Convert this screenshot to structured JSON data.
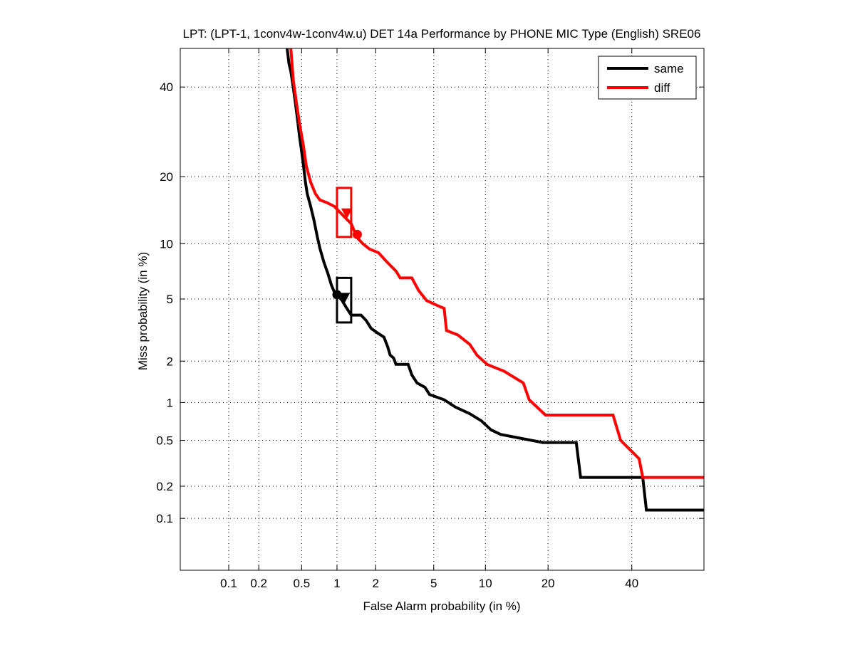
{
  "chart_data": {
    "type": "line",
    "title": "LPT: (LPT-1, 1conv4w-1conv4w.u) DET 14a Performance by PHONE MIC Type (English) SRE06",
    "xlabel": "False Alarm probability (in %)",
    "ylabel": "Miss probability (in %)",
    "xscale": "normal-deviate (probit)",
    "yscale": "normal-deviate (probit)",
    "xlim": [
      0.03,
      60
    ],
    "ylim": [
      0.03,
      50
    ],
    "x_ticks": [
      "0.1",
      "0.2",
      "0.5",
      "1",
      "2",
      "5",
      "10",
      "20",
      "40"
    ],
    "y_ticks": [
      "0.1",
      "0.2",
      "0.5",
      "1",
      "2",
      "5",
      "10",
      "20",
      "40"
    ],
    "grid": true,
    "legend_position": "top-right",
    "series": [
      {
        "name": "same",
        "color": "#000000",
        "points": [
          [
            0.37,
            50
          ],
          [
            0.385,
            46
          ],
          [
            0.4,
            44
          ],
          [
            0.42,
            40
          ],
          [
            0.44,
            36
          ],
          [
            0.46,
            32
          ],
          [
            0.48,
            28
          ],
          [
            0.5,
            25
          ],
          [
            0.52,
            22
          ],
          [
            0.54,
            19
          ],
          [
            0.56,
            17
          ],
          [
            0.6,
            15
          ],
          [
            0.64,
            13
          ],
          [
            0.68,
            11
          ],
          [
            0.72,
            9.5
          ],
          [
            0.78,
            8
          ],
          [
            0.84,
            7
          ],
          [
            0.9,
            6
          ],
          [
            0.95,
            5.5
          ],
          [
            1.0,
            5.3
          ],
          [
            1.1,
            4.9
          ],
          [
            1.2,
            4.4
          ],
          [
            1.3,
            4.0
          ],
          [
            1.55,
            4.0
          ],
          [
            1.7,
            3.7
          ],
          [
            1.85,
            3.3
          ],
          [
            2.05,
            3.1
          ],
          [
            2.3,
            2.9
          ],
          [
            2.45,
            2.5
          ],
          [
            2.55,
            2.2
          ],
          [
            2.7,
            2.1
          ],
          [
            2.8,
            1.9
          ],
          [
            3.4,
            1.9
          ],
          [
            3.6,
            1.6
          ],
          [
            3.9,
            1.4
          ],
          [
            4.4,
            1.3
          ],
          [
            4.7,
            1.15
          ],
          [
            5.8,
            1.05
          ],
          [
            6.8,
            0.92
          ],
          [
            8.2,
            0.82
          ],
          [
            9.5,
            0.72
          ],
          [
            10.7,
            0.61
          ],
          [
            12,
            0.56
          ],
          [
            19,
            0.48
          ],
          [
            26,
            0.48
          ],
          [
            27,
            0.24
          ],
          [
            43,
            0.24
          ],
          [
            44,
            0.12
          ],
          [
            60,
            0.12
          ]
        ]
      },
      {
        "name": "diff",
        "color": "#ff0000",
        "points": [
          [
            0.4,
            50
          ],
          [
            0.42,
            42
          ],
          [
            0.45,
            36
          ],
          [
            0.48,
            31
          ],
          [
            0.52,
            26
          ],
          [
            0.55,
            22
          ],
          [
            0.6,
            19
          ],
          [
            0.66,
            17
          ],
          [
            0.72,
            16
          ],
          [
            0.82,
            15.6
          ],
          [
            0.95,
            15.0
          ],
          [
            1.1,
            13.8
          ],
          [
            1.3,
            12.5
          ],
          [
            1.45,
            10.7
          ],
          [
            1.6,
            10.0
          ],
          [
            1.8,
            9.4
          ],
          [
            2.1,
            9.0
          ],
          [
            2.4,
            8.1
          ],
          [
            2.8,
            7.2
          ],
          [
            3.0,
            6.6
          ],
          [
            3.6,
            6.6
          ],
          [
            4.0,
            5.6
          ],
          [
            4.5,
            4.9
          ],
          [
            5.2,
            4.6
          ],
          [
            5.8,
            4.4
          ],
          [
            6.0,
            3.2
          ],
          [
            7.0,
            3.0
          ],
          [
            8.2,
            2.6
          ],
          [
            9.0,
            2.2
          ],
          [
            10.2,
            1.9
          ],
          [
            12.5,
            1.7
          ],
          [
            15.5,
            1.4
          ],
          [
            16.5,
            1.05
          ],
          [
            19.5,
            0.8
          ],
          [
            35,
            0.8
          ],
          [
            37,
            0.5
          ],
          [
            42,
            0.35
          ],
          [
            43,
            0.24
          ],
          [
            60,
            0.24
          ]
        ]
      }
    ],
    "annotations": [
      {
        "series": "diff",
        "marker": "circle",
        "x": 1.45,
        "y": 11.1
      },
      {
        "series": "diff",
        "marker": "triangle-down",
        "x": 1.2,
        "y": 14.0
      },
      {
        "series": "diff",
        "marker": "rect",
        "x0": 1.0,
        "x1": 1.3,
        "y0": 10.8,
        "y1": 18.0
      },
      {
        "series": "same",
        "marker": "circle",
        "x": 1.0,
        "y": 5.3
      },
      {
        "series": "same",
        "marker": "triangle-down",
        "x": 1.15,
        "y": 5.1
      },
      {
        "series": "same",
        "marker": "rect",
        "x0": 1.0,
        "x1": 1.3,
        "y0": 3.6,
        "y1": 6.6
      }
    ]
  }
}
